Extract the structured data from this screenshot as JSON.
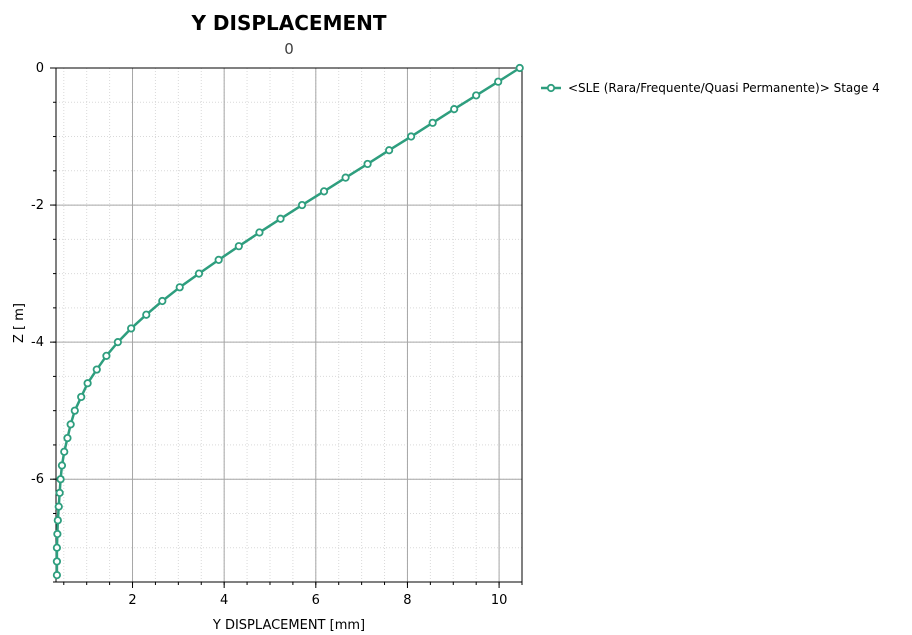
{
  "chart_data": {
    "type": "line",
    "title": "Y DISPLACEMENT",
    "subtitle": "0",
    "xlabel": "Y DISPLACEMENT [mm]",
    "ylabel": "Z [ m]",
    "xlim": [
      0.33,
      10.5
    ],
    "ylim": [
      -7.5,
      0
    ],
    "x_ticks": [
      2,
      4,
      6,
      8,
      10
    ],
    "y_ticks": [
      0,
      -2,
      -4,
      -6
    ],
    "grid": true,
    "legend_position": "top-right",
    "colors": {
      "series": "#2e9e7e"
    },
    "series": [
      {
        "name": "<SLE (Rara/Frequente/Quasi Permanente)> Stage 4",
        "marker": "circle",
        "points": [
          {
            "x": 10.45,
            "z": 0.0
          },
          {
            "x": 9.98,
            "z": -0.2
          },
          {
            "x": 9.5,
            "z": -0.4
          },
          {
            "x": 9.02,
            "z": -0.6
          },
          {
            "x": 8.55,
            "z": -0.8
          },
          {
            "x": 8.08,
            "z": -1.0
          },
          {
            "x": 7.6,
            "z": -1.2
          },
          {
            "x": 7.13,
            "z": -1.4
          },
          {
            "x": 6.65,
            "z": -1.6
          },
          {
            "x": 6.18,
            "z": -1.8
          },
          {
            "x": 5.7,
            "z": -2.0
          },
          {
            "x": 5.23,
            "z": -2.2
          },
          {
            "x": 4.77,
            "z": -2.4
          },
          {
            "x": 4.32,
            "z": -2.6
          },
          {
            "x": 3.88,
            "z": -2.8
          },
          {
            "x": 3.45,
            "z": -3.0
          },
          {
            "x": 3.03,
            "z": -3.2
          },
          {
            "x": 2.65,
            "z": -3.4
          },
          {
            "x": 2.3,
            "z": -3.6
          },
          {
            "x": 1.97,
            "z": -3.8
          },
          {
            "x": 1.68,
            "z": -4.0
          },
          {
            "x": 1.43,
            "z": -4.2
          },
          {
            "x": 1.22,
            "z": -4.4
          },
          {
            "x": 1.02,
            "z": -4.6
          },
          {
            "x": 0.88,
            "z": -4.8
          },
          {
            "x": 0.74,
            "z": -5.0
          },
          {
            "x": 0.65,
            "z": -5.2
          },
          {
            "x": 0.58,
            "z": -5.4
          },
          {
            "x": 0.51,
            "z": -5.6
          },
          {
            "x": 0.46,
            "z": -5.8
          },
          {
            "x": 0.43,
            "z": -6.0
          },
          {
            "x": 0.41,
            "z": -6.2
          },
          {
            "x": 0.39,
            "z": -6.4
          },
          {
            "x": 0.37,
            "z": -6.6
          },
          {
            "x": 0.36,
            "z": -6.8
          },
          {
            "x": 0.35,
            "z": -7.0
          },
          {
            "x": 0.35,
            "z": -7.2
          },
          {
            "x": 0.35,
            "z": -7.4
          }
        ]
      }
    ]
  }
}
